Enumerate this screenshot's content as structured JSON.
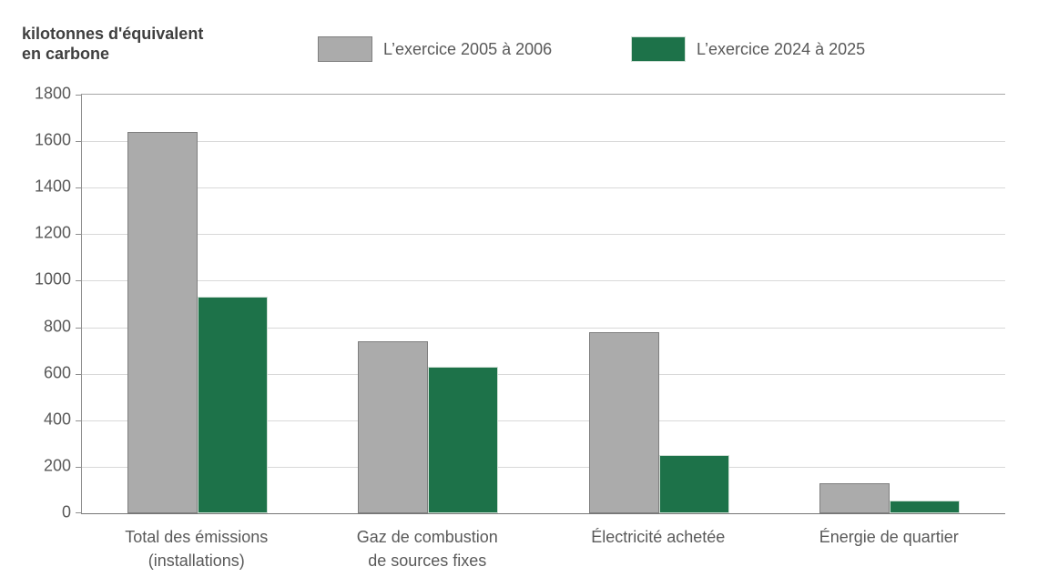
{
  "y_axis_title": {
    "line1": "kilotonnes d'équivalent",
    "line2": "en carbone"
  },
  "chart_data": {
    "type": "bar",
    "title": "kilotonnes d'équivalent en carbone",
    "categories": [
      "Total des émissions\n(installations)",
      "Gaz de combustion\nde sources fixes",
      "Électricité achetée",
      "Énergie de quartier"
    ],
    "series": [
      {
        "name": "L’exercice 2005 à 2006",
        "color": "#ababab",
        "border_color": "#7f7f7f",
        "values": [
          1640,
          740,
          780,
          130
        ]
      },
      {
        "name": "L’exercice 2024 à 2025",
        "color": "#1d7249",
        "border_color": "#cfdfd5",
        "values": [
          930,
          630,
          250,
          55
        ]
      }
    ],
    "ylim": [
      0,
      1800
    ],
    "ytick_step": 200,
    "grid": true,
    "legend_position": "top"
  },
  "style_colors": {
    "gridline": "#d9d9d9",
    "axis": "#8f8f8f",
    "tick_text": "#595959",
    "title_text": "#3f3f3f"
  }
}
